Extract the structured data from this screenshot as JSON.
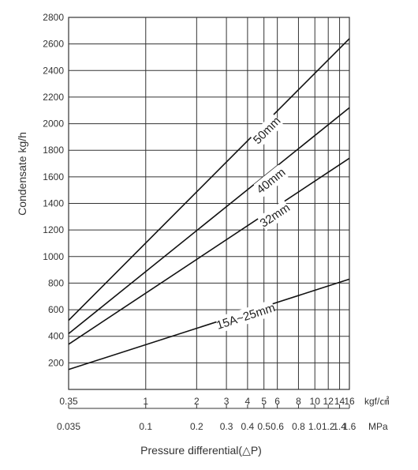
{
  "chart_data": {
    "type": "line",
    "ylabel": "Condensate kg/h",
    "xlabel": "Pressure differential(△P)",
    "x_scale": "log",
    "y_scale": "linear",
    "xlim": [
      0.35,
      16
    ],
    "ylim": [
      0,
      2800
    ],
    "grid": true,
    "y_ticks": [
      200,
      400,
      600,
      800,
      1000,
      1200,
      1400,
      1600,
      1800,
      2000,
      2200,
      2400,
      2600,
      2800
    ],
    "x_ticks_kgf": [
      "0.35",
      "1",
      "2",
      "3",
      "4",
      "5",
      "6",
      "8",
      "10",
      "12",
      "14",
      "16"
    ],
    "x_ticks_mpa": [
      "0.035",
      "0.1",
      "0.2",
      "0.3",
      "0.4",
      "0.5",
      "0.6",
      "0.8",
      "1.0",
      "1.2",
      "1.4",
      "1.6"
    ],
    "x_unit_kgf": "kgf/㎠",
    "x_unit_mpa": "MPa",
    "series": [
      {
        "name": "50mm",
        "x": [
          0.35,
          16
        ],
        "y": [
          520,
          2640
        ]
      },
      {
        "name": "40mm",
        "x": [
          0.35,
          16
        ],
        "y": [
          420,
          2120
        ]
      },
      {
        "name": "32mm",
        "x": [
          0.35,
          16
        ],
        "y": [
          340,
          1740
        ]
      },
      {
        "name": "15A~25mm",
        "x": [
          0.35,
          16
        ],
        "y": [
          150,
          830
        ]
      }
    ],
    "series_label_pos": [
      {
        "x": 5.2,
        "y": 1950
      },
      {
        "x": 5.5,
        "y": 1570
      },
      {
        "x": 5.8,
        "y": 1310
      },
      {
        "x": 3.9,
        "y": 550
      }
    ]
  }
}
